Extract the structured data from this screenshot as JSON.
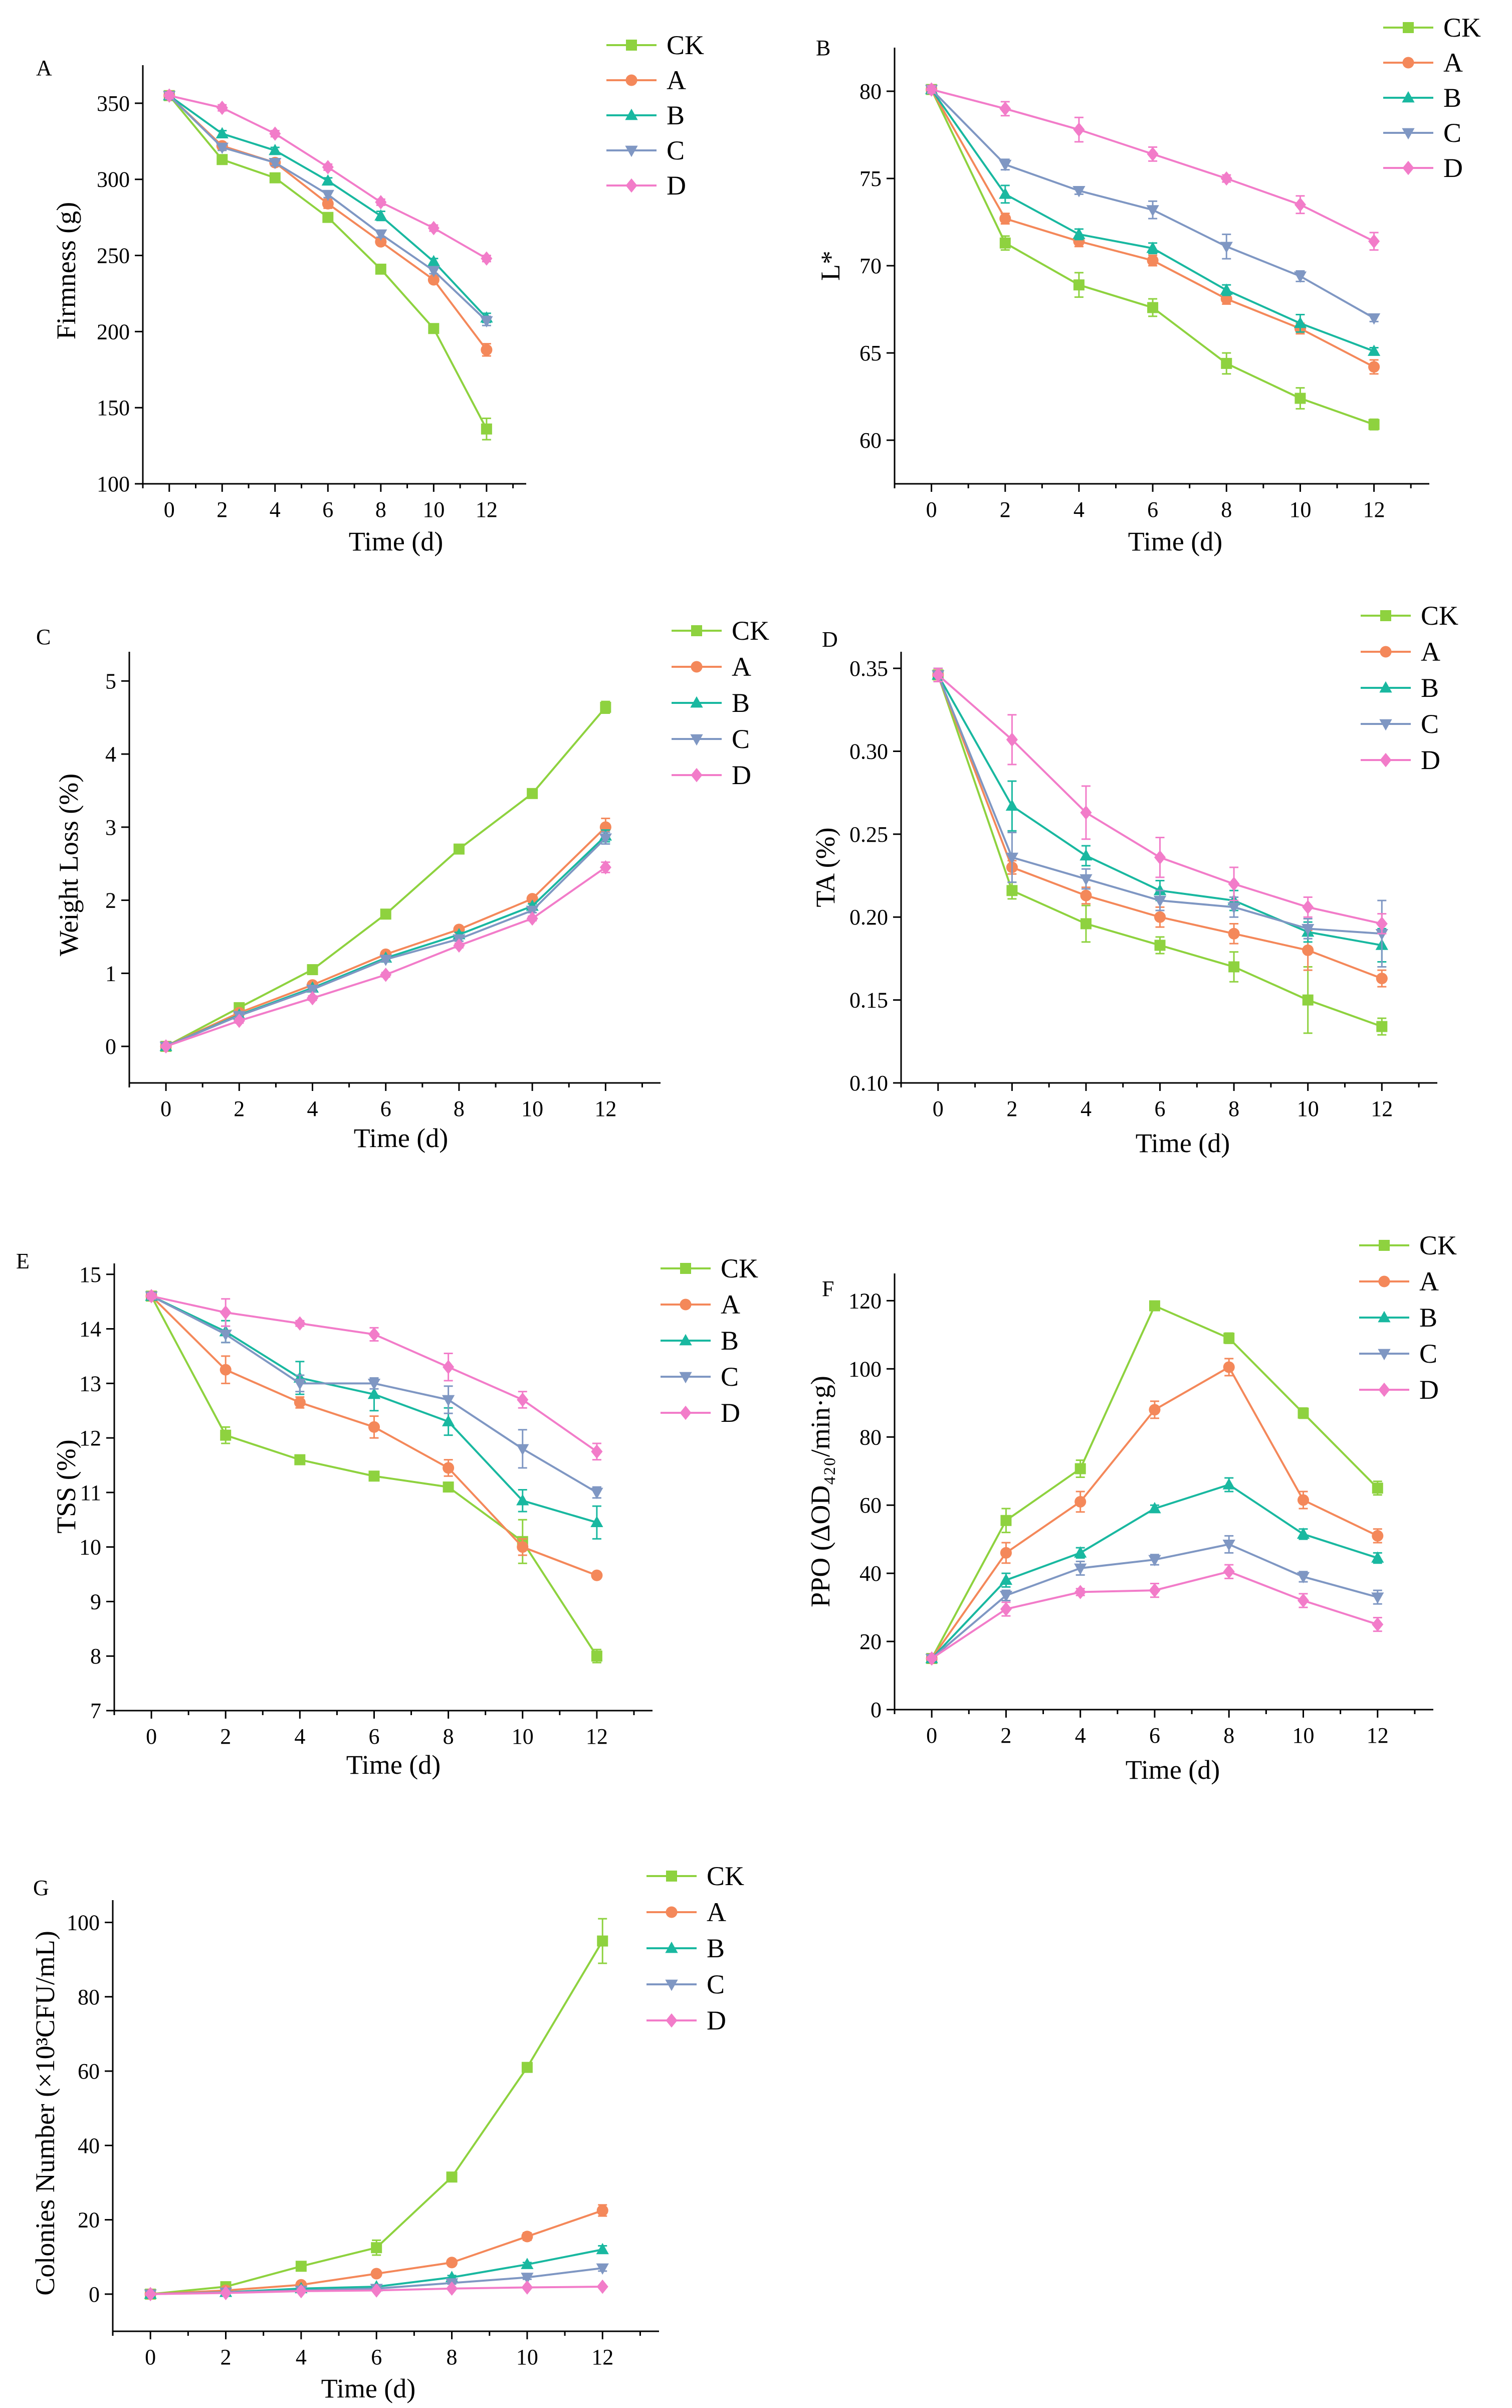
{
  "chart_data": [
    {
      "panel": "A",
      "type": "line",
      "xlabel": "Time (d)",
      "ylabel": "Firmness (g)",
      "x": [
        0,
        2,
        4,
        6,
        8,
        10,
        12
      ],
      "xticks": [
        "0",
        "2",
        "4",
        "6",
        "8",
        "10",
        "12"
      ],
      "ylim": [
        100,
        375
      ],
      "yticks": [
        100,
        150,
        200,
        250,
        300,
        350
      ],
      "ytick_labels": [
        "100",
        "150",
        "200",
        "250",
        "300",
        "350"
      ],
      "series": [
        {
          "name": "CK",
          "marker": "square",
          "values": [
            355,
            313,
            301,
            275,
            241,
            202,
            136
          ],
          "errors": [
            2,
            2,
            2,
            2,
            2,
            3,
            7
          ]
        },
        {
          "name": "A",
          "marker": "circle",
          "values": [
            355,
            322,
            311,
            284,
            259,
            234,
            188
          ],
          "errors": [
            2,
            2,
            2,
            3,
            2,
            2,
            4
          ]
        },
        {
          "name": "B",
          "marker": "triangle-up",
          "values": [
            355,
            330,
            319,
            299,
            276,
            246,
            209
          ],
          "errors": [
            2,
            2,
            2,
            2,
            3,
            2,
            3
          ]
        },
        {
          "name": "C",
          "marker": "triangle-down",
          "values": [
            355,
            321,
            311,
            290,
            264,
            240,
            207
          ],
          "errors": [
            2,
            2,
            2,
            2,
            2,
            2,
            3
          ]
        },
        {
          "name": "D",
          "marker": "diamond",
          "values": [
            355,
            347,
            330,
            308,
            285,
            268,
            248
          ],
          "errors": [
            2,
            2,
            2,
            2,
            2,
            2,
            2
          ]
        }
      ]
    },
    {
      "panel": "B",
      "type": "line",
      "xlabel": "Time (d)",
      "ylabel": "L*",
      "x": [
        0,
        2,
        4,
        6,
        8,
        10,
        12
      ],
      "xticks": [
        "0",
        "2",
        "4",
        "6",
        "8",
        "10",
        "12"
      ],
      "ylim": [
        57.5,
        82.5
      ],
      "yticks": [
        60,
        65,
        70,
        75,
        80
      ],
      "ytick_labels": [
        "60",
        "65",
        "70",
        "75",
        "80"
      ],
      "series": [
        {
          "name": "CK",
          "marker": "square",
          "values": [
            80.1,
            71.3,
            68.9,
            67.6,
            64.4,
            62.4,
            60.9
          ],
          "errors": [
            0.2,
            0.4,
            0.7,
            0.5,
            0.6,
            0.6,
            0.3
          ]
        },
        {
          "name": "A",
          "marker": "circle",
          "values": [
            80.1,
            72.7,
            71.4,
            70.3,
            68.1,
            66.4,
            64.2
          ],
          "errors": [
            0.2,
            0.3,
            0.3,
            0.3,
            0.3,
            0.3,
            0.4
          ]
        },
        {
          "name": "B",
          "marker": "triangle-up",
          "values": [
            80.1,
            74.1,
            71.8,
            71.0,
            68.6,
            66.7,
            65.1
          ],
          "errors": [
            0.2,
            0.5,
            0.3,
            0.3,
            0.3,
            0.5,
            0.2
          ]
        },
        {
          "name": "C",
          "marker": "triangle-down",
          "values": [
            80.1,
            75.8,
            74.3,
            73.2,
            71.1,
            69.4,
            67.0
          ],
          "errors": [
            0.2,
            0.3,
            0.2,
            0.5,
            0.7,
            0.3,
            0.2
          ]
        },
        {
          "name": "D",
          "marker": "diamond",
          "values": [
            80.1,
            79.0,
            77.8,
            76.4,
            75.0,
            73.5,
            71.4
          ],
          "errors": [
            0.2,
            0.4,
            0.7,
            0.4,
            0.2,
            0.5,
            0.5
          ]
        }
      ]
    },
    {
      "panel": "C",
      "type": "line",
      "xlabel": "Time (d)",
      "ylabel": "Weight Loss (%)",
      "x": [
        0,
        2,
        4,
        6,
        8,
        10,
        12
      ],
      "xticks": [
        "0",
        "2",
        "4",
        "6",
        "8",
        "10",
        "12"
      ],
      "ylim": [
        -0.5,
        5.4
      ],
      "yticks": [
        0,
        1,
        2,
        3,
        4,
        5
      ],
      "ytick_labels": [
        "0",
        "1",
        "2",
        "3",
        "4",
        "5"
      ],
      "series": [
        {
          "name": "CK",
          "marker": "square",
          "values": [
            0,
            0.53,
            1.05,
            1.81,
            2.7,
            3.46,
            4.64
          ],
          "errors": [
            0.02,
            0.03,
            0.03,
            0.03,
            0.03,
            0.03,
            0.08
          ]
        },
        {
          "name": "A",
          "marker": "circle",
          "values": [
            0,
            0.46,
            0.84,
            1.26,
            1.6,
            2.02,
            3.0
          ],
          "errors": [
            0.02,
            0.03,
            0.03,
            0.03,
            0.03,
            0.03,
            0.12
          ]
        },
        {
          "name": "B",
          "marker": "triangle-up",
          "values": [
            0,
            0.43,
            0.8,
            1.21,
            1.53,
            1.92,
            2.88
          ],
          "errors": [
            0.02,
            0.03,
            0.03,
            0.03,
            0.03,
            0.03,
            0.08
          ]
        },
        {
          "name": "C",
          "marker": "triangle-down",
          "values": [
            0,
            0.42,
            0.78,
            1.19,
            1.47,
            1.86,
            2.85
          ],
          "errors": [
            0.02,
            0.03,
            0.03,
            0.03,
            0.03,
            0.03,
            0.08
          ]
        },
        {
          "name": "D",
          "marker": "diamond",
          "values": [
            0,
            0.35,
            0.66,
            0.98,
            1.38,
            1.75,
            2.45
          ],
          "errors": [
            0.02,
            0.03,
            0.03,
            0.03,
            0.03,
            0.03,
            0.07
          ]
        }
      ]
    },
    {
      "panel": "D",
      "type": "line",
      "xlabel": "Time (d)",
      "ylabel": "TA (%)",
      "x": [
        0,
        2,
        4,
        6,
        8,
        10,
        12
      ],
      "xticks": [
        "0",
        "2",
        "4",
        "6",
        "8",
        "10",
        "12"
      ],
      "ylim": [
        0.1,
        0.36
      ],
      "yticks": [
        0.1,
        0.15,
        0.2,
        0.25,
        0.3,
        0.35
      ],
      "ytick_labels": [
        "0.10",
        "0.15",
        "0.20",
        "0.25",
        "0.30",
        "0.35"
      ],
      "series": [
        {
          "name": "CK",
          "marker": "square",
          "values": [
            0.346,
            0.216,
            0.196,
            0.183,
            0.17,
            0.15,
            0.134
          ],
          "errors": [
            0.004,
            0.005,
            0.011,
            0.005,
            0.009,
            0.02,
            0.005
          ]
        },
        {
          "name": "A",
          "marker": "circle",
          "values": [
            0.346,
            0.23,
            0.213,
            0.2,
            0.19,
            0.18,
            0.163
          ],
          "errors": [
            0.004,
            0.004,
            0.005,
            0.006,
            0.006,
            0.012,
            0.005
          ]
        },
        {
          "name": "B",
          "marker": "triangle-up",
          "values": [
            0.346,
            0.267,
            0.237,
            0.216,
            0.21,
            0.191,
            0.183
          ],
          "errors": [
            0.004,
            0.015,
            0.006,
            0.006,
            0.006,
            0.006,
            0.01
          ]
        },
        {
          "name": "C",
          "marker": "triangle-down",
          "values": [
            0.346,
            0.236,
            0.223,
            0.21,
            0.206,
            0.193,
            0.19
          ],
          "errors": [
            0.004,
            0.015,
            0.006,
            0.006,
            0.006,
            0.006,
            0.02
          ]
        },
        {
          "name": "D",
          "marker": "diamond",
          "values": [
            0.346,
            0.307,
            0.263,
            0.236,
            0.22,
            0.206,
            0.196
          ],
          "errors": [
            0.004,
            0.015,
            0.016,
            0.012,
            0.01,
            0.006,
            0.006
          ]
        }
      ]
    },
    {
      "panel": "E",
      "type": "line",
      "xlabel": "Time (d)",
      "ylabel": "TSS (%)",
      "x": [
        0,
        2,
        4,
        6,
        8,
        10,
        12
      ],
      "xticks": [
        "0",
        "2",
        "4",
        "6",
        "8",
        "10",
        "12"
      ],
      "ylim": [
        7,
        15.2
      ],
      "yticks": [
        7,
        8,
        9,
        10,
        11,
        12,
        13,
        14,
        15
      ],
      "ytick_labels": [
        "7",
        "8",
        "9",
        "10",
        "11",
        "12",
        "13",
        "14",
        "15"
      ],
      "series": [
        {
          "name": "CK",
          "marker": "square",
          "values": [
            14.6,
            12.05,
            11.6,
            11.3,
            11.1,
            10.1,
            8.0
          ],
          "errors": [
            0.05,
            0.15,
            0.08,
            0.05,
            0.05,
            0.4,
            0.12
          ]
        },
        {
          "name": "A",
          "marker": "circle",
          "values": [
            14.6,
            13.25,
            12.65,
            12.2,
            11.45,
            10.0,
            9.48
          ],
          "errors": [
            0.05,
            0.25,
            0.1,
            0.2,
            0.15,
            0.15,
            0.05
          ]
        },
        {
          "name": "B",
          "marker": "triangle-up",
          "values": [
            14.6,
            13.95,
            13.1,
            12.8,
            12.3,
            10.85,
            10.45
          ],
          "errors": [
            0.05,
            0.2,
            0.3,
            0.3,
            0.25,
            0.2,
            0.3
          ]
        },
        {
          "name": "C",
          "marker": "triangle-down",
          "values": [
            14.6,
            13.9,
            13.0,
            13.0,
            12.7,
            11.8,
            11.0
          ],
          "errors": [
            0.05,
            0.15,
            0.15,
            0.1,
            0.25,
            0.35,
            0.1
          ]
        },
        {
          "name": "D",
          "marker": "diamond",
          "values": [
            14.6,
            14.3,
            14.1,
            13.9,
            13.3,
            12.7,
            11.75
          ],
          "errors": [
            0.05,
            0.25,
            0.05,
            0.12,
            0.25,
            0.15,
            0.15
          ]
        }
      ]
    },
    {
      "panel": "F",
      "type": "line",
      "xlabel": "Time (d)",
      "ylabel": "PPO (ΔOD₄₂₀/min·g)",
      "x": [
        0,
        2,
        4,
        6,
        8,
        10,
        12
      ],
      "xticks": [
        "0",
        "2",
        "4",
        "6",
        "8",
        "10",
        "12"
      ],
      "ylim": [
        0,
        128
      ],
      "yticks": [
        0,
        20,
        40,
        60,
        80,
        100,
        120
      ],
      "ytick_labels": [
        "0",
        "20",
        "40",
        "60",
        "80",
        "100",
        "120"
      ],
      "series": [
        {
          "name": "CK",
          "marker": "square",
          "values": [
            15,
            55.5,
            70.7,
            118.5,
            109.0,
            87.0,
            65.0
          ],
          "errors": [
            0.5,
            3.5,
            2.5,
            1.0,
            1.5,
            1.5,
            2.0
          ]
        },
        {
          "name": "A",
          "marker": "circle",
          "values": [
            15,
            46.0,
            61.0,
            88.0,
            100.5,
            61.5,
            51.0
          ],
          "errors": [
            0.5,
            3.0,
            3.0,
            2.5,
            2.5,
            2.5,
            2.0
          ]
        },
        {
          "name": "B",
          "marker": "triangle-up",
          "values": [
            15,
            38.0,
            46.0,
            59.0,
            66.0,
            51.5,
            44.5
          ],
          "errors": [
            0.5,
            2.0,
            1.5,
            1.0,
            2.0,
            1.5,
            1.5
          ]
        },
        {
          "name": "C",
          "marker": "triangle-down",
          "values": [
            15,
            33.5,
            41.5,
            44.0,
            48.5,
            39.0,
            33.0
          ],
          "errors": [
            0.5,
            1.5,
            2.0,
            1.5,
            2.5,
            1.5,
            2.0
          ]
        },
        {
          "name": "D",
          "marker": "diamond",
          "values": [
            15,
            29.5,
            34.5,
            35.0,
            40.5,
            32.0,
            25.0
          ],
          "errors": [
            0.5,
            2.0,
            1.0,
            2.0,
            2.0,
            2.0,
            2.0
          ]
        }
      ]
    },
    {
      "panel": "G",
      "type": "line",
      "xlabel": "Time (d)",
      "ylabel": "Colonies Number (×10³CFU/mL)",
      "x": [
        0,
        2,
        4,
        6,
        8,
        10,
        12
      ],
      "xticks": [
        "0",
        "2",
        "4",
        "6",
        "8",
        "10",
        "12"
      ],
      "ylim": [
        -10,
        106
      ],
      "yticks": [
        0,
        20,
        40,
        60,
        80,
        100
      ],
      "ytick_labels": [
        "0",
        "20",
        "40",
        "60",
        "80",
        "100"
      ],
      "series": [
        {
          "name": "CK",
          "marker": "square",
          "values": [
            0,
            2.0,
            7.5,
            12.5,
            31.5,
            61.0,
            95.0
          ],
          "errors": [
            0.3,
            0.5,
            0.8,
            2.0,
            0.8,
            1.0,
            6.0
          ]
        },
        {
          "name": "A",
          "marker": "circle",
          "values": [
            0,
            1.0,
            2.5,
            5.5,
            8.5,
            15.5,
            22.5
          ],
          "errors": [
            0.3,
            0.3,
            0.3,
            0.5,
            0.5,
            1.0,
            1.5
          ]
        },
        {
          "name": "B",
          "marker": "triangle-up",
          "values": [
            0,
            0.5,
            1.5,
            2.0,
            4.5,
            8.0,
            12.0
          ],
          "errors": [
            0.3,
            0.3,
            0.3,
            0.3,
            0.5,
            0.5,
            1.0
          ]
        },
        {
          "name": "C",
          "marker": "triangle-down",
          "values": [
            0,
            0.5,
            1.0,
            1.5,
            3.0,
            4.5,
            7.0
          ],
          "errors": [
            0.3,
            0.3,
            0.3,
            0.3,
            0.3,
            0.5,
            0.8
          ]
        },
        {
          "name": "D",
          "marker": "diamond",
          "values": [
            0,
            0.3,
            0.8,
            1.0,
            1.5,
            1.8,
            2.0
          ],
          "errors": [
            0.2,
            0.2,
            0.2,
            0.2,
            0.2,
            0.2,
            0.2
          ]
        }
      ]
    }
  ],
  "series_colors": {
    "CK": "#8ED23F",
    "A": "#F4885A",
    "B": "#19B8A0",
    "C": "#7F97C3",
    "D": "#F27CC9"
  }
}
